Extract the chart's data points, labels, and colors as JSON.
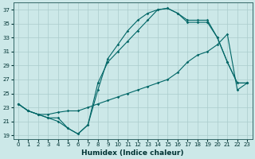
{
  "xlabel": "Humidex (Indice chaleur)",
  "bg_color": "#cce8e8",
  "grid_color": "#aacccc",
  "line_color": "#006666",
  "xlim": [
    -0.5,
    23.5
  ],
  "ylim": [
    18.5,
    38
  ],
  "yticks": [
    19,
    21,
    23,
    25,
    27,
    29,
    31,
    33,
    35,
    37
  ],
  "xticks": [
    0,
    1,
    2,
    3,
    4,
    5,
    6,
    7,
    8,
    9,
    10,
    11,
    12,
    13,
    14,
    15,
    16,
    17,
    18,
    19,
    20,
    21,
    22,
    23
  ],
  "line1_x": [
    0,
    1,
    2,
    3,
    4,
    5,
    6,
    7,
    8,
    9,
    10,
    11,
    12,
    13,
    14,
    15,
    16,
    17,
    18,
    19,
    20,
    21,
    22,
    23
  ],
  "line1_y": [
    23.5,
    22.5,
    22.0,
    21.5,
    21.5,
    20.0,
    19.2,
    20.5,
    25.5,
    30.0,
    32.0,
    34.0,
    35.5,
    36.5,
    37.0,
    37.2,
    36.5,
    35.5,
    35.5,
    35.5,
    33.0,
    29.5,
    26.5,
    26.5
  ],
  "line2_x": [
    0,
    1,
    2,
    3,
    4,
    5,
    6,
    7,
    8,
    9,
    10,
    11,
    12,
    13,
    14,
    15,
    16,
    17,
    18,
    19,
    20,
    21,
    22,
    23
  ],
  "line2_y": [
    23.5,
    22.5,
    22.0,
    21.5,
    21.0,
    20.0,
    19.2,
    20.5,
    26.5,
    29.5,
    31.0,
    32.5,
    34.0,
    35.5,
    37.0,
    37.2,
    36.5,
    35.2,
    35.2,
    35.2,
    33.0,
    29.5,
    26.5,
    26.5
  ],
  "line3_x": [
    0,
    1,
    2,
    3,
    4,
    5,
    6,
    7,
    8,
    9,
    10,
    11,
    12,
    13,
    14,
    15,
    16,
    17,
    18,
    19,
    20,
    21,
    22,
    23
  ],
  "line3_y": [
    23.5,
    22.5,
    22.0,
    22.0,
    22.3,
    22.5,
    22.5,
    23.0,
    23.5,
    24.0,
    24.5,
    25.0,
    25.5,
    26.0,
    26.5,
    27.0,
    28.0,
    29.5,
    30.5,
    31.0,
    32.0,
    33.5,
    25.5,
    26.5
  ]
}
